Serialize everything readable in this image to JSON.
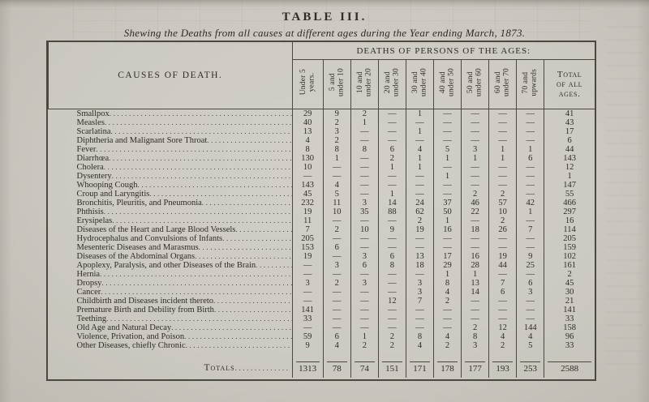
{
  "colors": {
    "paper": "#cac8c0",
    "ink": "#2e2c27",
    "rule": "#4c483f"
  },
  "page": {
    "title": "TABLE III.",
    "subtitle": "Shewing the Deaths from all causes at different ages during the Year ending March, 1873."
  },
  "table": {
    "causes_header": "CAUSES OF DEATH.",
    "ages_header": "DEATHS OF PERSONS OF THE AGES:",
    "age_columns": [
      "Under 5\nyears.",
      "5 and\nunder 10",
      "10 and\nunder 20",
      "20 and\nunder 30",
      "30 and\nunder 40",
      "40 and\nunder 50",
      "50 and\nunder 60",
      "60 and\nunder 70",
      "70 and\nupwards"
    ],
    "total_column": "Total\nof all\nages.",
    "empty_cell": "—",
    "rows": [
      {
        "cause": "Smallpox",
        "values": [
          "29",
          "9",
          "2",
          "—",
          "1",
          "—",
          "—",
          "—",
          "—",
          "41"
        ]
      },
      {
        "cause": "Measles",
        "values": [
          "40",
          "2",
          "1",
          "—",
          "—",
          "—",
          "—",
          "—",
          "—",
          "43"
        ]
      },
      {
        "cause": "Scarlatina",
        "values": [
          "13",
          "3",
          "—",
          "—",
          "1",
          "—",
          "—",
          "—",
          "—",
          "17"
        ]
      },
      {
        "cause": "Diphtheria and Malignant Sore Throat",
        "values": [
          "4",
          "2",
          "—",
          "—",
          "—",
          "—",
          "—",
          "—",
          "—",
          "6"
        ]
      },
      {
        "cause": "Fever",
        "values": [
          "8",
          "8",
          "8",
          "6",
          "4",
          "5",
          "3",
          "1",
          "1",
          "44"
        ]
      },
      {
        "cause": "Diarrhœa",
        "values": [
          "130",
          "1",
          "—",
          "2",
          "1",
          "1",
          "1",
          "1",
          "6",
          "143"
        ]
      },
      {
        "cause": "Cholera",
        "values": [
          "10",
          "—",
          "—",
          "1",
          "1",
          "—",
          "—",
          "—",
          "—",
          "12"
        ]
      },
      {
        "cause": "Dysentery",
        "values": [
          "—",
          "—",
          "—",
          "—",
          "—",
          "1",
          "—",
          "—",
          "—",
          "1"
        ]
      },
      {
        "cause": "Whooping Cough",
        "values": [
          "143",
          "4",
          "—",
          "—",
          "—",
          "—",
          "—",
          "—",
          "—",
          "147"
        ]
      },
      {
        "cause": "Croup and Laryngitis",
        "values": [
          "45",
          "5",
          "—",
          "1",
          "—",
          "—",
          "2",
          "2",
          "—",
          "55"
        ]
      },
      {
        "cause": "Bronchitis, Pleuritis, and Pneumonia",
        "values": [
          "232",
          "11",
          "3",
          "14",
          "24",
          "37",
          "46",
          "57",
          "42",
          "466"
        ]
      },
      {
        "cause": "Phthisis",
        "values": [
          "19",
          "10",
          "35",
          "88",
          "62",
          "50",
          "22",
          "10",
          "1",
          "297"
        ]
      },
      {
        "cause": "Erysipelas",
        "values": [
          "11",
          "—",
          "—",
          "—",
          "2",
          "1",
          "—",
          "2",
          "—",
          "16"
        ]
      },
      {
        "cause": "Diseases of the Heart and Large Blood Vessels",
        "values": [
          "7",
          "2",
          "10",
          "9",
          "19",
          "16",
          "18",
          "26",
          "7",
          "114"
        ]
      },
      {
        "cause": "Hydrocephalus and Convulsions of Infants",
        "values": [
          "205",
          "—",
          "—",
          "—",
          "—",
          "—",
          "—",
          "—",
          "—",
          "205"
        ]
      },
      {
        "cause": "Mesenteric Diseases and Marasmus",
        "values": [
          "153",
          "6",
          "—",
          "—",
          "—",
          "—",
          "—",
          "—",
          "—",
          "159"
        ]
      },
      {
        "cause": "Diseases of the Abdominal Organs",
        "values": [
          "19",
          "—",
          "3",
          "6",
          "13",
          "17",
          "16",
          "19",
          "9",
          "102"
        ]
      },
      {
        "cause": "Apoplexy, Paralysis, and other Diseases of the Brain",
        "values": [
          "—",
          "3",
          "6",
          "8",
          "18",
          "29",
          "28",
          "44",
          "25",
          "161"
        ]
      },
      {
        "cause": "Hernia",
        "values": [
          "—",
          "—",
          "—",
          "—",
          "—",
          "1",
          "1",
          "—",
          "—",
          "2"
        ]
      },
      {
        "cause": "Dropsy",
        "values": [
          "3",
          "2",
          "3",
          "—",
          "3",
          "8",
          "13",
          "7",
          "6",
          "45"
        ]
      },
      {
        "cause": "Cancer",
        "values": [
          "—",
          "—",
          "—",
          "—",
          "3",
          "4",
          "14",
          "6",
          "3",
          "30"
        ]
      },
      {
        "cause": "Childbirth and Diseases incident thereto",
        "values": [
          "—",
          "—",
          "—",
          "12",
          "7",
          "2",
          "—",
          "—",
          "—",
          "21"
        ]
      },
      {
        "cause": "Premature Birth and Debility from Birth",
        "values": [
          "141",
          "—",
          "—",
          "—",
          "—",
          "—",
          "—",
          "—",
          "—",
          "141"
        ]
      },
      {
        "cause": "Teething",
        "values": [
          "33",
          "—",
          "—",
          "—",
          "—",
          "—",
          "—",
          "—",
          "—",
          "33"
        ]
      },
      {
        "cause": "Old Age and Natural Decay",
        "values": [
          "—",
          "—",
          "—",
          "—",
          "—",
          "—",
          "2",
          "12",
          "144",
          "158"
        ]
      },
      {
        "cause": "Violence, Privation, and Poison",
        "values": [
          "59",
          "6",
          "1",
          "2",
          "8",
          "4",
          "8",
          "4",
          "4",
          "96"
        ]
      },
      {
        "cause": "Other Diseases, chiefly Chronic",
        "values": [
          "9",
          "4",
          "2",
          "2",
          "4",
          "2",
          "3",
          "2",
          "5",
          "33"
        ]
      }
    ],
    "totals": {
      "label": "Totals",
      "values": [
        "1313",
        "78",
        "74",
        "151",
        "171",
        "178",
        "177",
        "193",
        "253",
        "2588"
      ]
    }
  }
}
